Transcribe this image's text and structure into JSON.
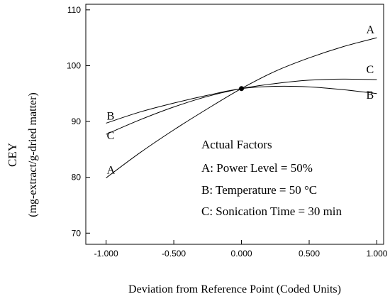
{
  "chart_data": {
    "type": "line",
    "title": "",
    "xlabel": "Deviation from Reference Point (Coded Units)",
    "ylabel": "CEY",
    "ylabel_sub": "(mg-extract/g-dried matter)",
    "xlim": [
      -1.15,
      1.05
    ],
    "ylim": [
      68,
      111
    ],
    "x_ticks": [
      -1,
      -0.5,
      0,
      0.5,
      1
    ],
    "x_tick_labels": [
      "-1.000",
      "-0.500",
      "0.000",
      "0.500",
      "1.000"
    ],
    "y_ticks": [
      70,
      80,
      90,
      100,
      110
    ],
    "y_tick_labels": [
      "70",
      "80",
      "90",
      "100",
      "110"
    ],
    "x": [
      -1,
      -0.75,
      -0.5,
      -0.25,
      0,
      0.25,
      0.5,
      0.75,
      1
    ],
    "series": [
      {
        "name": "A",
        "values": [
          79.9,
          84.4,
          88.5,
          92.3,
          95.9,
          99.0,
          101.4,
          103.4,
          105.0
        ]
      },
      {
        "name": "B",
        "values": [
          89.7,
          91.7,
          93.3,
          94.7,
          95.9,
          96.3,
          96.2,
          95.7,
          95.0
        ]
      },
      {
        "name": "C",
        "values": [
          87.7,
          90.3,
          92.6,
          94.5,
          95.9,
          96.8,
          97.4,
          97.6,
          97.5
        ]
      }
    ],
    "reference_point": {
      "x": 0,
      "y": 95.9
    },
    "annotation": {
      "title": "Actual Factors",
      "lines": [
        "A: Power Level = 50%",
        "B: Temperature = 50 °C",
        "C: Sonication Time = 30 min"
      ]
    }
  }
}
